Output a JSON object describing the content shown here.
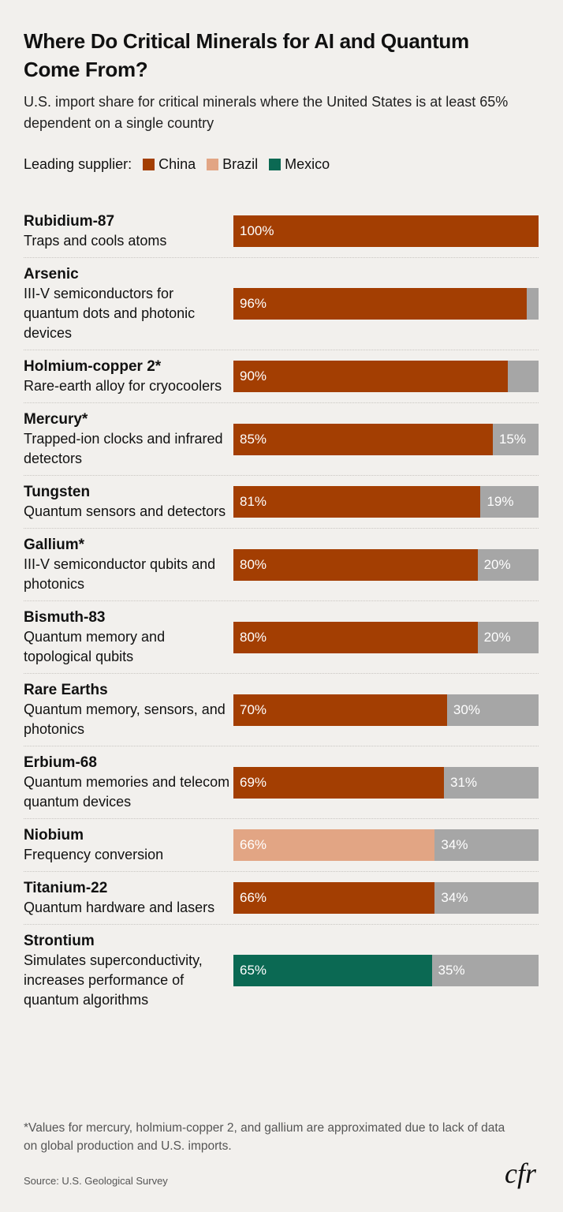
{
  "chart_data": {
    "type": "bar",
    "orientation": "horizontal",
    "stacked": true,
    "title": "Where Do Critical Minerals for AI and Quantum Come From?",
    "subtitle": "U.S. import share for critical minerals where the United States is at least 65% dependent on a single country",
    "legend_title": "Leading supplier:",
    "categories": [
      "Rubidium-87",
      "Arsenic",
      "Holmium-copper 2*",
      "Mercury*",
      "Tungsten",
      "Gallium*",
      "Bismuth-83",
      "Rare Earths",
      "Erbium-68",
      "Niobium",
      "Titanium-22",
      "Strontium"
    ],
    "descriptions": [
      "Traps and cools atoms",
      "III-V semiconductors for quantum dots and photonic devices",
      "Rare-earth alloy for cryocoolers",
      "Trapped-ion clocks and infrared detectors",
      "Quantum sensors and detectors",
      "III-V semiconductor qubits and photonics",
      "Quantum memory and topological qubits",
      "Quantum memory, sensors, and photonics",
      "Quantum memories and telecom quantum devices",
      "Frequency conversion",
      "Quantum hardware and lasers",
      "Simulates superconductivity, increases performance of quantum algorithms"
    ],
    "xlim": [
      0,
      100
    ],
    "series": [
      {
        "name": "China",
        "color": "#a33e02",
        "values": [
          100,
          96,
          90,
          85,
          81,
          80,
          80,
          70,
          69,
          null,
          66,
          null
        ],
        "value_labels": [
          "100%",
          "96%",
          "90%",
          "85%",
          "81%",
          "80%",
          "80%",
          "70%",
          "69%",
          null,
          "66%",
          null
        ]
      },
      {
        "name": "Brazil",
        "color": "#e2a584",
        "values": [
          null,
          null,
          null,
          null,
          null,
          null,
          null,
          null,
          null,
          66,
          null,
          null
        ],
        "value_labels": [
          null,
          null,
          null,
          null,
          null,
          null,
          null,
          null,
          null,
          "66%",
          null,
          null
        ]
      },
      {
        "name": "Mexico",
        "color": "#0b6953",
        "values": [
          null,
          null,
          null,
          null,
          null,
          null,
          null,
          null,
          null,
          null,
          null,
          65
        ],
        "value_labels": [
          null,
          null,
          null,
          null,
          null,
          null,
          null,
          null,
          null,
          null,
          null,
          "65%"
        ]
      }
    ],
    "remainder": {
      "color": "#a6a6a6",
      "values": [
        null,
        4,
        10,
        15,
        19,
        20,
        20,
        30,
        31,
        34,
        34,
        35
      ],
      "value_labels": [
        null,
        null,
        null,
        "15%",
        "19%",
        "20%",
        "20%",
        "30%",
        "31%",
        "34%",
        "34%",
        "35%"
      ]
    },
    "note": "*Values for mercury, holmium-copper 2, and gallium are approximated due to lack of data on global production and U.S. imports.",
    "source": "Source: U.S. Geological Survey",
    "logo": "cfr"
  }
}
